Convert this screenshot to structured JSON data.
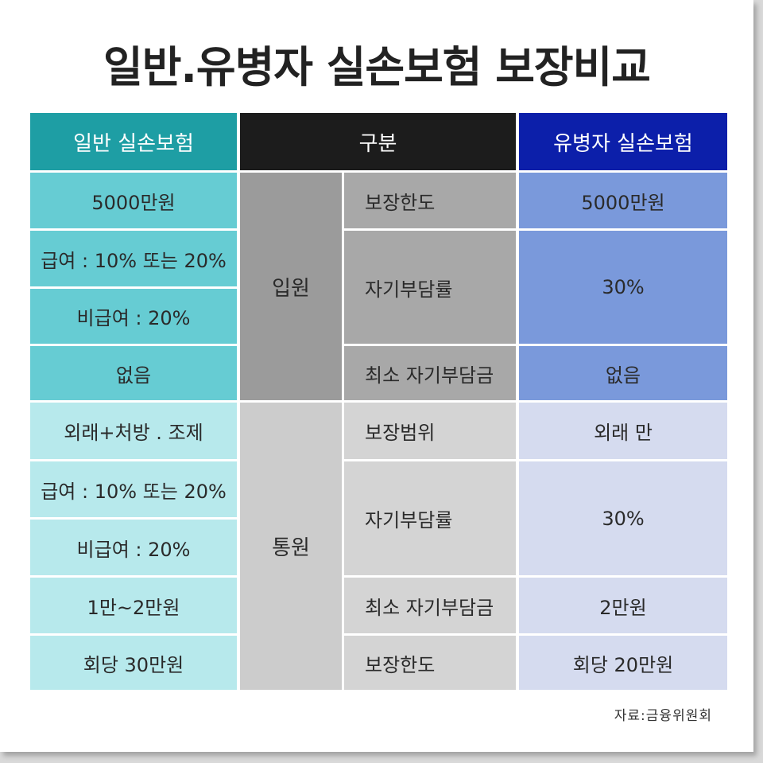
{
  "title": "일반.유병자 실손보험 보장비교",
  "headers": {
    "general": "일반 실손보험",
    "category": "구분",
    "preexisting": "유병자 실손보험"
  },
  "inpatient": {
    "label": "입원",
    "general": [
      "5000만원",
      "급여 : 10% 또는 20%",
      "비급여 : 20%",
      "없음"
    ],
    "items": [
      "보장한도",
      "자기부담률",
      "최소 자기부담금"
    ],
    "preexisting": [
      "5000만원",
      "30%",
      "없음"
    ]
  },
  "outpatient": {
    "label": "통원",
    "general": [
      "외래+처방 . 조제",
      "급여 : 10% 또는 20%",
      "비급여 : 20%",
      "1만~2만원",
      "회당 30만원"
    ],
    "items": [
      "보장범위",
      "자기부담률",
      "최소 자기부담금",
      "보장한도"
    ],
    "preexisting": [
      "외래 만",
      "30%",
      "2만원",
      "회당 20만원"
    ]
  },
  "source": "자료:금융위원회"
}
